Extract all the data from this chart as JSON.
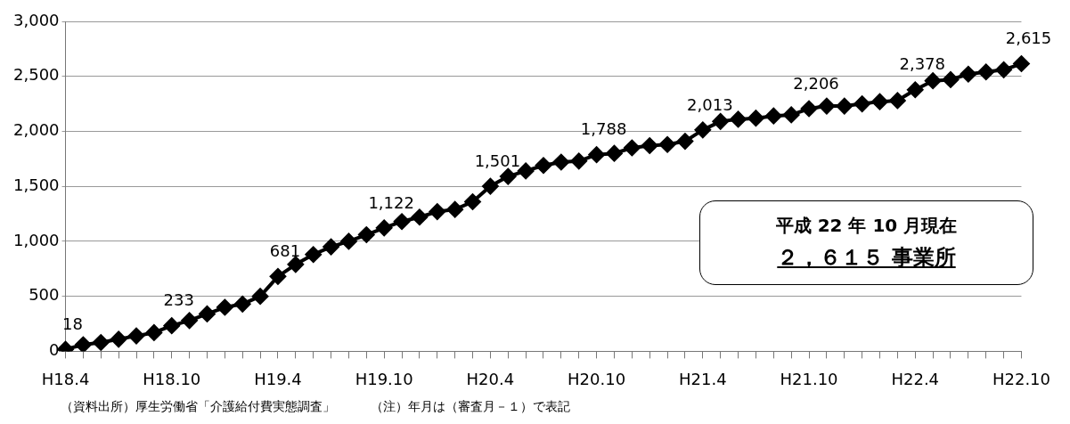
{
  "chart_data": {
    "type": "line",
    "categories": [
      "H18.4",
      null,
      null,
      null,
      null,
      null,
      "H18.10",
      null,
      null,
      null,
      null,
      null,
      "H19.4",
      null,
      null,
      null,
      null,
      null,
      "H19.10",
      null,
      null,
      null,
      null,
      null,
      "H20.4",
      null,
      null,
      null,
      null,
      null,
      "H20.10",
      null,
      null,
      null,
      null,
      null,
      "H21.4",
      null,
      null,
      null,
      null,
      null,
      "H21.10",
      null,
      null,
      null,
      null,
      null,
      "H22.4",
      null,
      null,
      null,
      null,
      null,
      "H22.10"
    ],
    "series": [
      {
        "color": "#000000",
        "values": [
          18,
          60,
          80,
          110,
          140,
          170,
          233,
          280,
          340,
          400,
          430,
          500,
          681,
          790,
          880,
          950,
          1000,
          1060,
          1122,
          1180,
          1220,
          1270,
          1290,
          1360,
          1501,
          1590,
          1640,
          1690,
          1720,
          1730,
          1788,
          1800,
          1850,
          1870,
          1880,
          1910,
          2013,
          2090,
          2110,
          2120,
          2140,
          2150,
          2206,
          2230,
          2230,
          2250,
          2270,
          2280,
          2378,
          2460,
          2470,
          2520,
          2540,
          2560,
          2615
        ],
        "value_labels": [
          "18",
          null,
          null,
          null,
          null,
          null,
          "233",
          null,
          null,
          null,
          null,
          null,
          "681",
          null,
          null,
          null,
          null,
          null,
          "1,122",
          null,
          null,
          null,
          null,
          null,
          "1,501",
          null,
          null,
          null,
          null,
          null,
          "1,788",
          null,
          null,
          null,
          null,
          null,
          "2,013",
          null,
          null,
          null,
          null,
          null,
          "2,206",
          null,
          null,
          null,
          null,
          null,
          "2,378",
          null,
          null,
          null,
          null,
          null,
          "2,615"
        ]
      }
    ],
    "ylim": [
      0,
      3000
    ],
    "yticks": [
      0,
      500,
      {
        "value": 1000,
        "label": "1,000"
      },
      {
        "value": 1500,
        "label": "1,500"
      },
      {
        "value": 2000,
        "label": "2,000"
      },
      {
        "value": 2500,
        "label": "2,500"
      },
      {
        "value": 3000,
        "label": "3,000"
      }
    ],
    "grid": "y",
    "marker": "diamond",
    "line_style": "solid",
    "legend": false,
    "annotations": [
      "平成 22 年 10 月現在",
      "２，６１５ 事業所",
      "（資料出所）厚生労働省「介護給付費実態調査」",
      "（注）年月は（審査月－１）で表記"
    ]
  }
}
